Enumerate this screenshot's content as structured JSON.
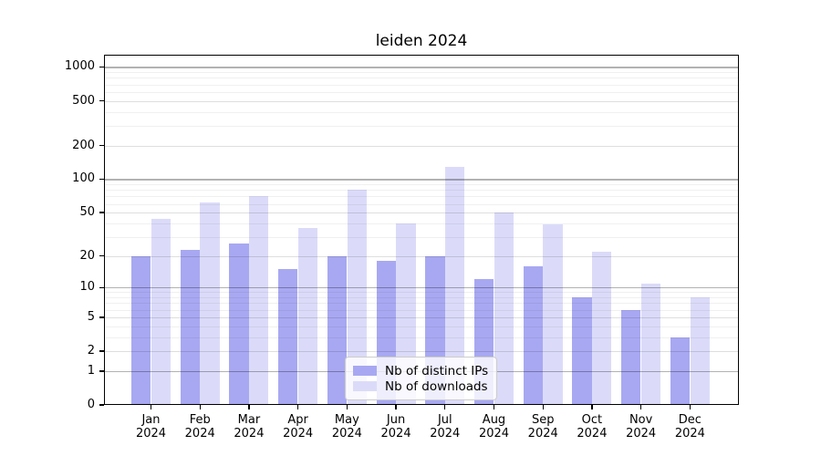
{
  "title": "leiden 2024",
  "chart_data": {
    "type": "bar",
    "title": "leiden 2024",
    "categories": [
      "Jan",
      "Feb",
      "Mar",
      "Apr",
      "May",
      "Jun",
      "Jul",
      "Aug",
      "Sep",
      "Oct",
      "Nov",
      "Dec"
    ],
    "year_label": "2024",
    "series": [
      {
        "name": "Nb of distinct IPs",
        "color": "#a8a8f2",
        "values": [
          20,
          23,
          26,
          15,
          20,
          18,
          20,
          12,
          16,
          8,
          6,
          3
        ]
      },
      {
        "name": "Nb of downloads",
        "color": "#dbdbf9",
        "values": [
          44,
          62,
          70,
          36,
          80,
          40,
          130,
          50,
          39,
          22,
          11,
          8
        ]
      }
    ],
    "yscale": "log1p",
    "y_ticks": [
      0,
      1,
      2,
      5,
      10,
      20,
      50,
      100,
      200,
      500,
      1000
    ],
    "y_decade_ticks": [
      1,
      10,
      100,
      1000
    ],
    "y_mid_ticks": [
      2,
      5,
      20,
      50,
      200,
      500
    ],
    "ylim": [
      0,
      1285
    ],
    "grid": true,
    "legend_position": "lower center",
    "background_color": "#ffffff"
  }
}
